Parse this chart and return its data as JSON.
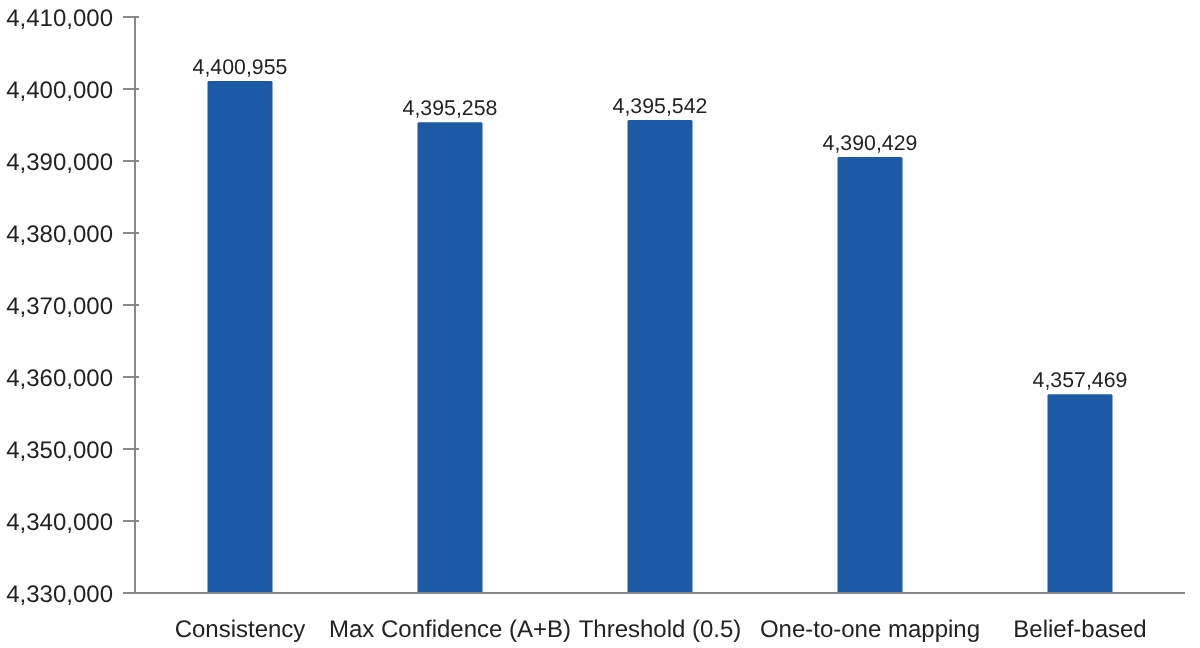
{
  "chart_data": {
    "type": "bar",
    "categories": [
      "Consistency",
      "Max Confidence (A+B)",
      "Threshold (0.5)",
      "One-to-one mapping",
      "Belief-based"
    ],
    "values": [
      4400955,
      4395258,
      4395542,
      4390429,
      4357469
    ],
    "color": "#1d5aa5",
    "data_labels": true,
    "value_labels": [
      "4,400,955",
      "4,395,258",
      "4,395,542",
      "4,390,429",
      "4,357,469"
    ],
    "ylim": [
      4330000,
      4410000
    ],
    "yticks": [
      {
        "value": 4330000,
        "label": "4,330,000"
      },
      {
        "value": 4340000,
        "label": "4,340,000"
      },
      {
        "value": 4350000,
        "label": "4,350,000"
      },
      {
        "value": 4360000,
        "label": "4,360,000"
      },
      {
        "value": 4370000,
        "label": "4,370,000"
      },
      {
        "value": 4380000,
        "label": "4,380,000"
      },
      {
        "value": 4390000,
        "label": "4,390,000"
      },
      {
        "value": 4400000,
        "label": "4,400,000"
      },
      {
        "value": 4410000,
        "label": "4,410,000"
      }
    ],
    "grid": false
  }
}
